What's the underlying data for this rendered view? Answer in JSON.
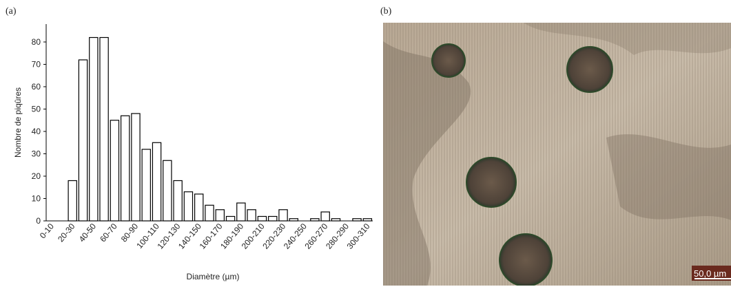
{
  "chart_data": {
    "type": "bar",
    "x_label": "Diamètre (µm)",
    "y_label": "Nombre de piqûres",
    "categories": [
      "0-10",
      null,
      "20-30",
      null,
      "40-50",
      null,
      "60-70",
      null,
      "80-90",
      null,
      "100-110",
      null,
      "120-130",
      null,
      "140-150",
      null,
      "160-170",
      null,
      "180-190",
      null,
      "200-210",
      null,
      "220-230",
      null,
      "240-250",
      null,
      "260-270",
      null,
      "280-290",
      null,
      "300-310"
    ],
    "values": [
      0,
      0,
      18,
      72,
      82,
      82,
      45,
      47,
      48,
      32,
      35,
      27,
      18,
      13,
      12,
      7,
      5,
      2,
      8,
      5,
      2,
      2,
      5,
      1,
      0,
      1,
      4,
      1,
      0,
      1,
      1
    ],
    "color": "#ffffff",
    "edge_color": "#000000",
    "ylim": [
      0,
      88
    ],
    "yticks": [
      0,
      10,
      20,
      30,
      40,
      50,
      60,
      70,
      80
    ],
    "grid": false
  },
  "panel_labels": [
    "(a)",
    "(b)"
  ],
  "micrograph": {
    "scale_bar": "50,0 µm"
  }
}
